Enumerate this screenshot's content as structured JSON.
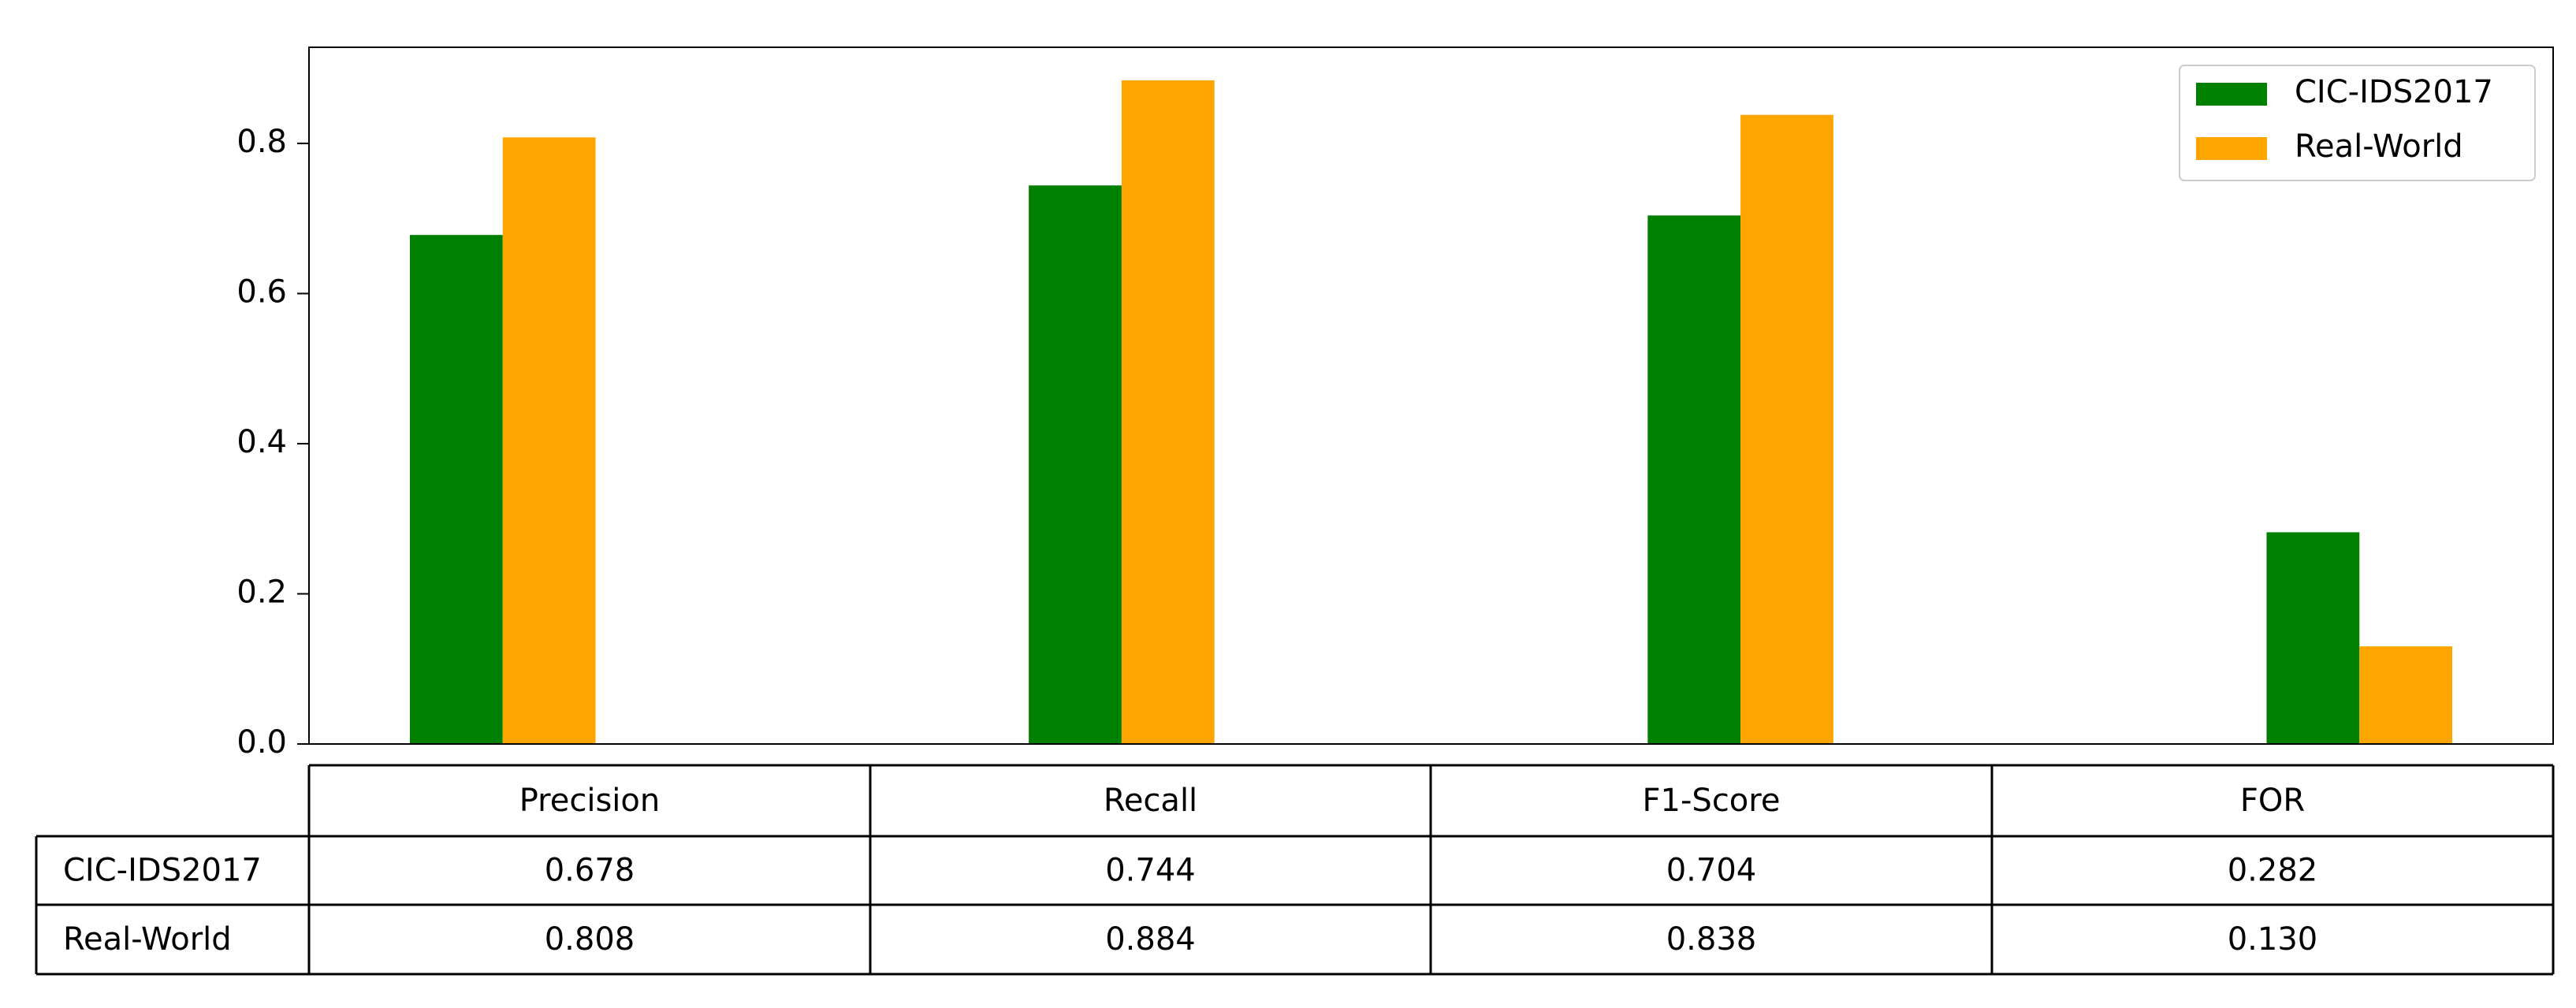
{
  "chart_data": {
    "type": "bar",
    "categories": [
      "Precision",
      "Recall",
      "F1-Score",
      "FOR"
    ],
    "series": [
      {
        "name": "CIC-IDS2017",
        "color": "#008000",
        "values": [
          0.678,
          0.744,
          0.704,
          0.282
        ],
        "value_labels": [
          "0.678",
          "0.744",
          "0.704",
          "0.282"
        ]
      },
      {
        "name": "Real-World",
        "color": "#ffa500",
        "values": [
          0.808,
          0.884,
          0.838,
          0.13
        ],
        "value_labels": [
          "0.808",
          "0.884",
          "0.838",
          "0.130"
        ]
      }
    ],
    "ylim": [
      0,
      0.928
    ],
    "yticks": [
      {
        "value": 0,
        "label": "0.0"
      },
      {
        "value": 0.2,
        "label": "0.2"
      },
      {
        "value": 0.4,
        "label": "0.4"
      },
      {
        "value": 0.6,
        "label": "0.6"
      },
      {
        "value": 0.8,
        "label": "0.8"
      }
    ],
    "legend": "upper right"
  }
}
